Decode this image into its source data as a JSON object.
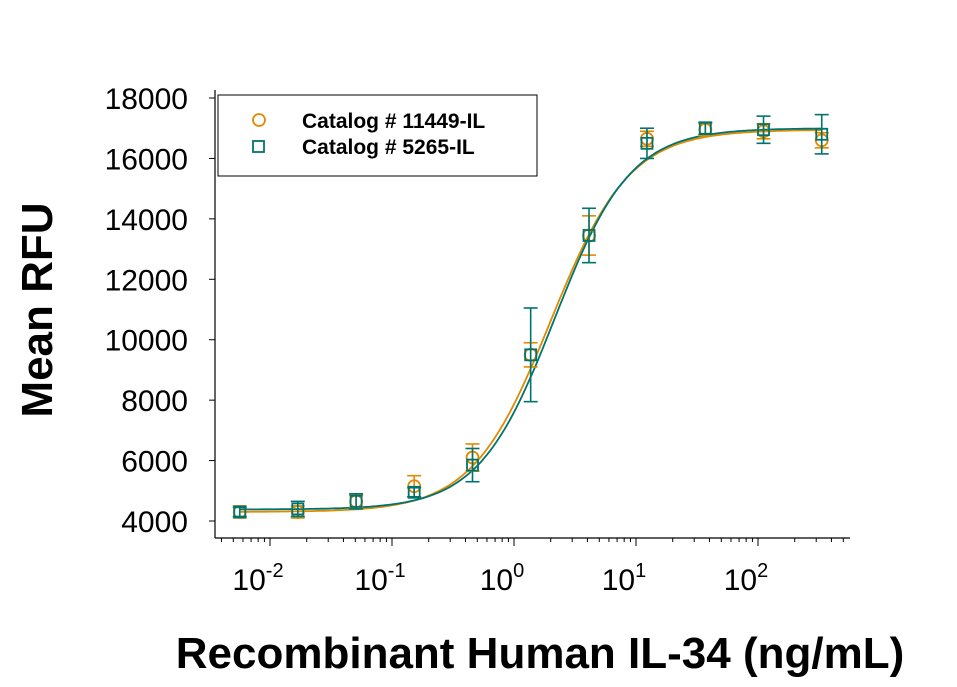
{
  "chart_data": {
    "type": "scatter",
    "title": "",
    "xlabel": "Recombinant Human IL-34 (ng/mL)",
    "ylabel": "Mean RFU",
    "xscale": "log",
    "xlim": [
      0.004,
      700
    ],
    "ylim": [
      3800,
      18000
    ],
    "x_ticks": [
      {
        "value": 0.01,
        "base": "10",
        "exp": "-2"
      },
      {
        "value": 0.1,
        "base": "10",
        "exp": "-1"
      },
      {
        "value": 1,
        "base": "10",
        "exp": "0"
      },
      {
        "value": 10,
        "base": "10",
        "exp": "1"
      },
      {
        "value": 100,
        "base": "10",
        "exp": "2"
      }
    ],
    "y_ticks": [
      4000,
      6000,
      8000,
      10000,
      12000,
      14000,
      16000,
      18000
    ],
    "grid": false,
    "legend_position": "top-left",
    "x": [
      0.00565,
      0.0169,
      0.0508,
      0.152,
      0.457,
      1.37,
      4.12,
      12.3,
      37,
      111,
      333
    ],
    "series": [
      {
        "name": "Catalog # 11449-IL",
        "marker": "circle",
        "color": "#e08a00",
        "values": [
          4300,
          4300,
          4650,
          5150,
          6100,
          9500,
          13450,
          16650,
          16950,
          16900,
          16600
        ],
        "errors": [
          200,
          200,
          200,
          350,
          450,
          400,
          650,
          250,
          200,
          250,
          250
        ]
      },
      {
        "name": "Catalog # 5265-IL",
        "marker": "square",
        "color": "#00736f",
        "values": [
          4300,
          4400,
          4650,
          4950,
          5850,
          9500,
          13450,
          16500,
          17000,
          16950,
          16800
        ],
        "errors": [
          150,
          250,
          250,
          150,
          550,
          1550,
          900,
          500,
          200,
          450,
          650
        ]
      }
    ]
  }
}
